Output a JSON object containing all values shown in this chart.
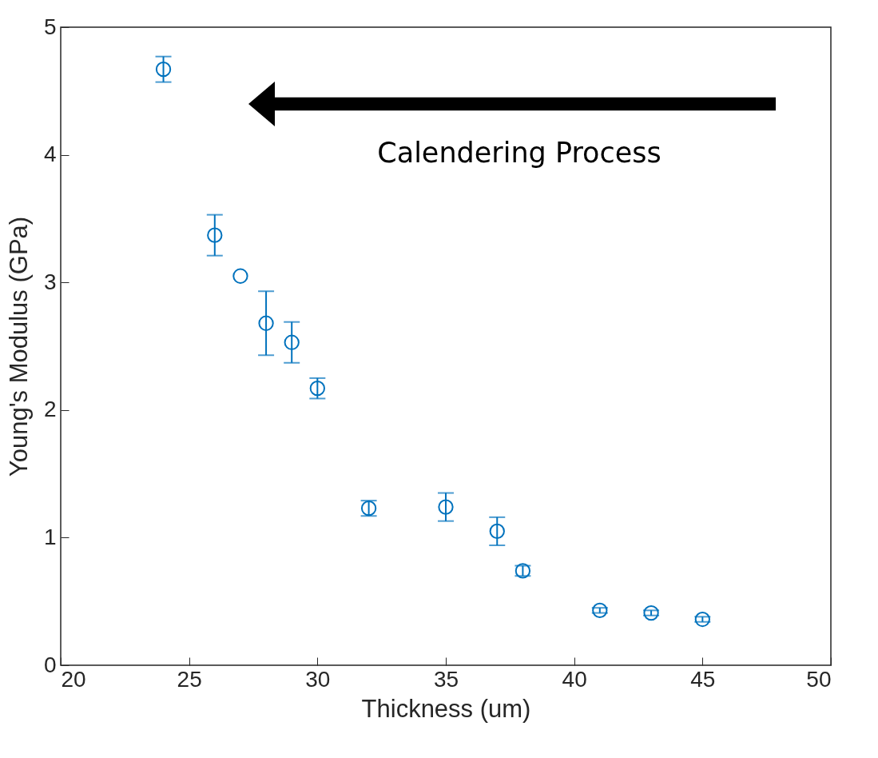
{
  "chart_data": {
    "type": "scatter",
    "xlabel": "Thickness (um)",
    "ylabel": "Young's Modulus (GPa)",
    "x": [
      24,
      26,
      27,
      28,
      29,
      30,
      32,
      35,
      37,
      38,
      41,
      43,
      45
    ],
    "series": [
      {
        "color": "#0072bd",
        "values": [
          4.67,
          3.37,
          3.05,
          2.68,
          2.53,
          2.17,
          1.23,
          1.24,
          1.05,
          0.74,
          0.43,
          0.41,
          0.36
        ],
        "errors": [
          0.1,
          0.16,
          null,
          0.25,
          0.16,
          0.08,
          0.06,
          0.11,
          0.11,
          0.04,
          0.02,
          0.02,
          0.02
        ]
      }
    ],
    "xlim": [
      20,
      50
    ],
    "xticks": [
      20,
      25,
      30,
      35,
      40,
      45,
      50
    ],
    "ylim": [
      0,
      5
    ],
    "yticks": [
      0,
      1,
      2,
      3,
      4,
      5
    ],
    "grid": false,
    "marker": "circle",
    "annotations": [
      "Calendering Process"
    ]
  }
}
